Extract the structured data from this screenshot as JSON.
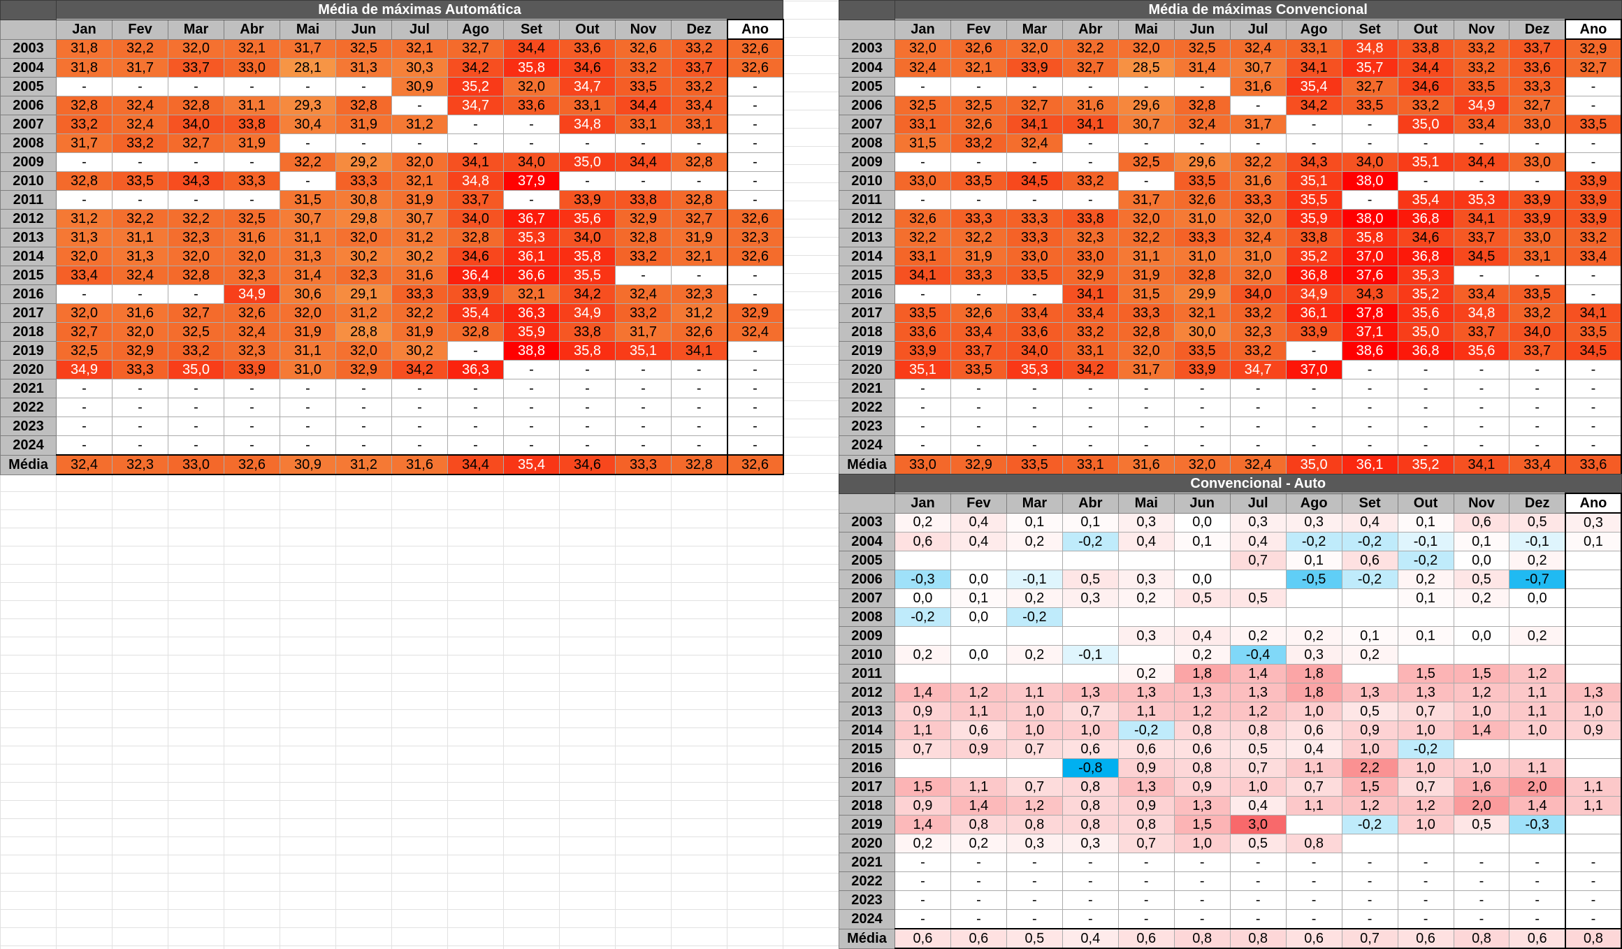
{
  "months": [
    "Jan",
    "Fev",
    "Mar",
    "Abr",
    "Mai",
    "Jun",
    "Jul",
    "Ago",
    "Set",
    "Out",
    "Nov",
    "Dez",
    "Ano"
  ],
  "years": [
    "2003",
    "2004",
    "2005",
    "2006",
    "2007",
    "2008",
    "2009",
    "2010",
    "2011",
    "2012",
    "2013",
    "2014",
    "2015",
    "2016",
    "2017",
    "2018",
    "2019",
    "2020",
    "2021",
    "2022",
    "2023",
    "2024"
  ],
  "avg_label": "Média",
  "colors": {
    "temp_low": "#f79646",
    "temp_mid": "#f4682a",
    "temp_high": "#ff0000",
    "diff_neg": "#00b0f0",
    "diff_pos": "#f8696b",
    "header_bg": "#595959",
    "month_bg": "#bfbfbf"
  },
  "tables": [
    {
      "id": "auto",
      "title": "Média de máximas Automática",
      "kind": "temp",
      "rows": [
        [
          "31,8",
          "32,2",
          "32,0",
          "32,1",
          "31,7",
          "32,5",
          "32,1",
          "32,7",
          "34,4",
          "33,6",
          "32,6",
          "33,2",
          "32,6"
        ],
        [
          "31,8",
          "31,7",
          "33,7",
          "33,0",
          "28,1",
          "31,3",
          "30,3",
          "34,2",
          "35,8",
          "34,6",
          "33,2",
          "33,7",
          "32,6"
        ],
        [
          "-",
          "-",
          "-",
          "-",
          "-",
          "-",
          "30,9",
          "35,2",
          "32,0",
          "34,7",
          "33,5",
          "33,2",
          "-"
        ],
        [
          "32,8",
          "32,4",
          "32,8",
          "31,1",
          "29,3",
          "32,8",
          "-",
          "34,7",
          "33,6",
          "33,1",
          "34,4",
          "33,4",
          "-"
        ],
        [
          "33,2",
          "32,4",
          "34,0",
          "33,8",
          "30,4",
          "31,9",
          "31,2",
          "-",
          "-",
          "34,8",
          "33,1",
          "33,1",
          "-"
        ],
        [
          "31,7",
          "33,2",
          "32,7",
          "31,9",
          "-",
          "-",
          "-",
          "-",
          "-",
          "-",
          "-",
          "-",
          "-"
        ],
        [
          "-",
          "-",
          "-",
          "-",
          "32,2",
          "29,2",
          "32,0",
          "34,1",
          "34,0",
          "35,0",
          "34,4",
          "32,8",
          "-"
        ],
        [
          "32,8",
          "33,5",
          "34,3",
          "33,3",
          "-",
          "33,3",
          "32,1",
          "34,8",
          "37,9",
          "-",
          "-",
          "-",
          "-"
        ],
        [
          "-",
          "-",
          "-",
          "-",
          "31,5",
          "30,8",
          "31,9",
          "33,7",
          "-",
          "33,9",
          "33,8",
          "32,8",
          "-"
        ],
        [
          "31,2",
          "32,2",
          "32,2",
          "32,5",
          "30,7",
          "29,8",
          "30,7",
          "34,0",
          "36,7",
          "35,6",
          "32,9",
          "32,7",
          "32,6"
        ],
        [
          "31,3",
          "31,1",
          "32,3",
          "31,6",
          "31,1",
          "32,0",
          "31,2",
          "32,8",
          "35,3",
          "34,0",
          "32,8",
          "31,9",
          "32,3"
        ],
        [
          "32,0",
          "31,3",
          "32,0",
          "32,0",
          "31,3",
          "30,2",
          "30,2",
          "34,6",
          "36,1",
          "35,8",
          "33,2",
          "32,1",
          "32,6"
        ],
        [
          "33,4",
          "32,4",
          "32,8",
          "32,3",
          "31,4",
          "32,3",
          "31,6",
          "36,4",
          "36,6",
          "35,5",
          "-",
          "-",
          "-"
        ],
        [
          "-",
          "-",
          "-",
          "34,9",
          "30,6",
          "29,1",
          "33,3",
          "33,9",
          "32,1",
          "34,2",
          "32,4",
          "32,3",
          "-"
        ],
        [
          "32,0",
          "31,6",
          "32,7",
          "32,6",
          "32,0",
          "31,2",
          "32,2",
          "35,4",
          "36,3",
          "34,9",
          "33,2",
          "31,2",
          "32,9"
        ],
        [
          "32,7",
          "32,0",
          "32,5",
          "32,4",
          "31,9",
          "28,8",
          "31,9",
          "32,8",
          "35,9",
          "33,8",
          "31,7",
          "32,6",
          "32,4"
        ],
        [
          "32,5",
          "32,9",
          "33,2",
          "32,3",
          "31,1",
          "32,0",
          "30,2",
          "-",
          "38,8",
          "35,8",
          "35,1",
          "34,1",
          "-"
        ],
        [
          "34,9",
          "33,3",
          "35,0",
          "33,9",
          "31,0",
          "32,9",
          "34,2",
          "36,3",
          "-",
          "-",
          "-",
          "-",
          "-"
        ],
        [
          "-",
          "-",
          "-",
          "-",
          "-",
          "-",
          "-",
          "-",
          "-",
          "-",
          "-",
          "-",
          "-"
        ],
        [
          "-",
          "-",
          "-",
          "-",
          "-",
          "-",
          "-",
          "-",
          "-",
          "-",
          "-",
          "-",
          "-"
        ],
        [
          "-",
          "-",
          "-",
          "-",
          "-",
          "-",
          "-",
          "-",
          "-",
          "-",
          "-",
          "-",
          "-"
        ],
        [
          "-",
          "-",
          "-",
          "-",
          "-",
          "-",
          "-",
          "-",
          "-",
          "-",
          "-",
          "-",
          "-"
        ]
      ],
      "avg": [
        "32,4",
        "32,3",
        "33,0",
        "32,6",
        "30,9",
        "31,2",
        "31,6",
        "34,4",
        "35,4",
        "34,6",
        "33,3",
        "32,8",
        "32,6"
      ]
    },
    {
      "id": "conv",
      "title": "Média de máximas Convencional",
      "kind": "temp",
      "rows": [
        [
          "32,0",
          "32,6",
          "32,0",
          "32,2",
          "32,0",
          "32,5",
          "32,4",
          "33,1",
          "34,8",
          "33,8",
          "33,2",
          "33,7",
          "32,9"
        ],
        [
          "32,4",
          "32,1",
          "33,9",
          "32,7",
          "28,5",
          "31,4",
          "30,7",
          "34,1",
          "35,7",
          "34,4",
          "33,2",
          "33,6",
          "32,7"
        ],
        [
          "-",
          "-",
          "-",
          "-",
          "-",
          "-",
          "31,6",
          "35,4",
          "32,7",
          "34,6",
          "33,5",
          "33,3",
          "-"
        ],
        [
          "32,5",
          "32,5",
          "32,7",
          "31,6",
          "29,6",
          "32,8",
          "-",
          "34,2",
          "33,5",
          "33,2",
          "34,9",
          "32,7",
          "-"
        ],
        [
          "33,1",
          "32,6",
          "34,1",
          "34,1",
          "30,7",
          "32,4",
          "31,7",
          "-",
          "-",
          "35,0",
          "33,4",
          "33,0",
          "33,5"
        ],
        [
          "31,5",
          "33,2",
          "32,4",
          "-",
          "-",
          "-",
          "-",
          "-",
          "-",
          "-",
          "-",
          "-",
          "-"
        ],
        [
          "-",
          "-",
          "-",
          "-",
          "32,5",
          "29,6",
          "32,2",
          "34,3",
          "34,0",
          "35,1",
          "34,4",
          "33,0",
          "-"
        ],
        [
          "33,0",
          "33,5",
          "34,5",
          "33,2",
          "-",
          "33,5",
          "31,6",
          "35,1",
          "38,0",
          "-",
          "-",
          "-",
          "33,9"
        ],
        [
          "-",
          "-",
          "-",
          "-",
          "31,7",
          "32,6",
          "33,3",
          "35,5",
          "-",
          "35,4",
          "35,3",
          "33,9",
          "33,9"
        ],
        [
          "32,6",
          "33,3",
          "33,3",
          "33,8",
          "32,0",
          "31,0",
          "32,0",
          "35,9",
          "38,0",
          "36,8",
          "34,1",
          "33,9",
          "33,9"
        ],
        [
          "32,2",
          "32,2",
          "33,3",
          "32,3",
          "32,2",
          "33,3",
          "32,4",
          "33,8",
          "35,8",
          "34,6",
          "33,7",
          "33,0",
          "33,2"
        ],
        [
          "33,1",
          "31,9",
          "33,0",
          "33,0",
          "31,1",
          "31,0",
          "31,0",
          "35,2",
          "37,0",
          "36,8",
          "34,5",
          "33,1",
          "33,4"
        ],
        [
          "34,1",
          "33,3",
          "33,5",
          "32,9",
          "31,9",
          "32,8",
          "32,0",
          "36,8",
          "37,6",
          "35,3",
          "-",
          "-",
          "-"
        ],
        [
          "-",
          "-",
          "-",
          "34,1",
          "31,5",
          "29,9",
          "34,0",
          "34,9",
          "34,3",
          "35,2",
          "33,4",
          "33,5",
          "-"
        ],
        [
          "33,5",
          "32,6",
          "33,4",
          "33,4",
          "33,3",
          "32,1",
          "33,2",
          "36,1",
          "37,8",
          "35,6",
          "34,8",
          "33,2",
          "34,1"
        ],
        [
          "33,6",
          "33,4",
          "33,6",
          "33,2",
          "32,8",
          "30,0",
          "32,3",
          "33,9",
          "37,1",
          "35,0",
          "33,7",
          "34,0",
          "33,5"
        ],
        [
          "33,9",
          "33,7",
          "34,0",
          "33,1",
          "32,0",
          "33,5",
          "33,2",
          "-",
          "38,6",
          "36,8",
          "35,6",
          "33,7",
          "34,5"
        ],
        [
          "35,1",
          "33,5",
          "35,3",
          "34,2",
          "31,7",
          "33,9",
          "34,7",
          "37,0",
          "-",
          "-",
          "-",
          "-",
          "-"
        ],
        [
          "-",
          "-",
          "-",
          "-",
          "-",
          "-",
          "-",
          "-",
          "-",
          "-",
          "-",
          "-",
          "-"
        ],
        [
          "-",
          "-",
          "-",
          "-",
          "-",
          "-",
          "-",
          "-",
          "-",
          "-",
          "-",
          "-",
          "-"
        ],
        [
          "-",
          "-",
          "-",
          "-",
          "-",
          "-",
          "-",
          "-",
          "-",
          "-",
          "-",
          "-",
          "-"
        ],
        [
          "-",
          "-",
          "-",
          "-",
          "-",
          "-",
          "-",
          "-",
          "-",
          "-",
          "-",
          "-",
          "-"
        ]
      ],
      "avg": [
        "33,0",
        "32,9",
        "33,5",
        "33,1",
        "31,6",
        "32,0",
        "32,4",
        "35,0",
        "36,1",
        "35,2",
        "34,1",
        "33,4",
        "33,6"
      ]
    },
    {
      "id": "diff",
      "title": "Convencional - Auto",
      "kind": "diff",
      "rows": [
        [
          "0,2",
          "0,4",
          "0,1",
          "0,1",
          "0,3",
          "0,0",
          "0,3",
          "0,3",
          "0,4",
          "0,1",
          "0,6",
          "0,5",
          "0,3"
        ],
        [
          "0,6",
          "0,4",
          "0,2",
          "-0,2",
          "0,4",
          "0,1",
          "0,4",
          "-0,2",
          "-0,2",
          "-0,1",
          "0,1",
          "-0,1",
          "0,1"
        ],
        [
          "",
          "",
          "",
          "",
          "",
          "",
          "0,7",
          "0,1",
          "0,6",
          "-0,2",
          "0,0",
          "0,2",
          ""
        ],
        [
          "-0,3",
          "0,0",
          "-0,1",
          "0,5",
          "0,3",
          "0,0",
          "",
          "-0,5",
          "-0,2",
          "0,2",
          "0,5",
          "-0,7",
          ""
        ],
        [
          "0,0",
          "0,1",
          "0,2",
          "0,3",
          "0,2",
          "0,5",
          "0,5",
          "",
          "",
          "0,1",
          "0,2",
          "0,0",
          ""
        ],
        [
          "-0,2",
          "0,0",
          "-0,2",
          "",
          "",
          "",
          "",
          "",
          "",
          "",
          "",
          "",
          ""
        ],
        [
          "",
          "",
          "",
          "",
          "0,3",
          "0,4",
          "0,2",
          "0,2",
          "0,1",
          "0,1",
          "0,0",
          "0,2",
          ""
        ],
        [
          "0,2",
          "0,0",
          "0,2",
          "-0,1",
          "",
          "0,2",
          "-0,4",
          "0,3",
          "0,2",
          "",
          "",
          "",
          ""
        ],
        [
          "",
          "",
          "",
          "",
          "0,2",
          "1,8",
          "1,4",
          "1,8",
          "",
          "1,5",
          "1,5",
          "1,2",
          ""
        ],
        [
          "1,4",
          "1,2",
          "1,1",
          "1,3",
          "1,3",
          "1,3",
          "1,3",
          "1,8",
          "1,3",
          "1,3",
          "1,2",
          "1,1",
          "1,3"
        ],
        [
          "0,9",
          "1,1",
          "1,0",
          "0,7",
          "1,1",
          "1,2",
          "1,2",
          "1,0",
          "0,5",
          "0,7",
          "1,0",
          "1,1",
          "1,0"
        ],
        [
          "1,1",
          "0,6",
          "1,0",
          "1,0",
          "-0,2",
          "0,8",
          "0,8",
          "0,6",
          "0,9",
          "1,0",
          "1,4",
          "1,0",
          "0,9"
        ],
        [
          "0,7",
          "0,9",
          "0,7",
          "0,6",
          "0,6",
          "0,6",
          "0,5",
          "0,4",
          "1,0",
          "-0,2",
          "",
          "",
          ""
        ],
        [
          "",
          "",
          "",
          "-0,8",
          "0,9",
          "0,8",
          "0,7",
          "1,1",
          "2,2",
          "1,0",
          "1,0",
          "1,1",
          ""
        ],
        [
          "1,5",
          "1,1",
          "0,7",
          "0,8",
          "1,3",
          "0,9",
          "1,0",
          "0,7",
          "1,5",
          "0,7",
          "1,6",
          "2,0",
          "1,1"
        ],
        [
          "0,9",
          "1,4",
          "1,2",
          "0,8",
          "0,9",
          "1,3",
          "0,4",
          "1,1",
          "1,2",
          "1,2",
          "2,0",
          "1,4",
          "1,1"
        ],
        [
          "1,4",
          "0,8",
          "0,8",
          "0,8",
          "0,8",
          "1,5",
          "3,0",
          "",
          "-0,2",
          "1,0",
          "0,5",
          "-0,3",
          ""
        ],
        [
          "0,2",
          "0,2",
          "0,3",
          "0,3",
          "0,7",
          "1,0",
          "0,5",
          "0,8",
          "",
          "",
          "",
          "",
          ""
        ],
        [
          "-",
          "-",
          "-",
          "-",
          "-",
          "-",
          "-",
          "-",
          "-",
          "-",
          "-",
          "-",
          "-"
        ],
        [
          "-",
          "-",
          "-",
          "-",
          "-",
          "-",
          "-",
          "-",
          "-",
          "-",
          "-",
          "-",
          "-"
        ],
        [
          "-",
          "-",
          "-",
          "-",
          "-",
          "-",
          "-",
          "-",
          "-",
          "-",
          "-",
          "-",
          "-"
        ],
        [
          "-",
          "-",
          "-",
          "-",
          "-",
          "-",
          "-",
          "-",
          "-",
          "-",
          "-",
          "-",
          "-"
        ]
      ],
      "avg": [
        "0,6",
        "0,6",
        "0,5",
        "0,4",
        "0,6",
        "0,8",
        "0,8",
        "0,6",
        "0,7",
        "0,6",
        "0,8",
        "0,6",
        "0,8"
      ]
    }
  ]
}
